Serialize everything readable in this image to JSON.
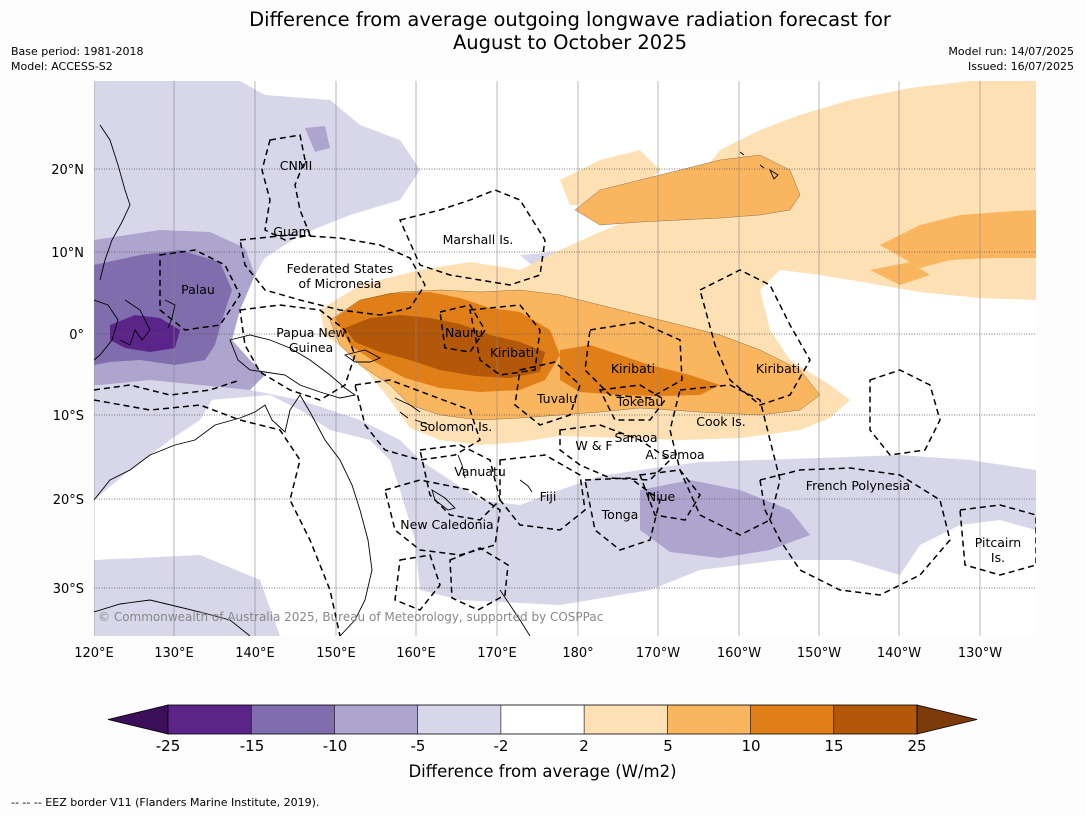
{
  "title_line1": "Difference from average outgoing longwave radiation forecast for",
  "title_line2": "August to October 2025",
  "meta_left": [
    "Base period: 1981-2018",
    "Model: ACCESS-S2"
  ],
  "meta_right": [
    "Model run: 14/07/2025",
    "Issued: 16/07/2025"
  ],
  "lat_labels": [
    "20°N",
    "10°N",
    "0°",
    "10°S",
    "20°S",
    "30°S"
  ],
  "lon_labels": [
    "120°E",
    "130°E",
    "140°E",
    "150°E",
    "160°E",
    "170°E",
    "180°",
    "170°W",
    "160°W",
    "150°W",
    "140°W",
    "130°W"
  ],
  "region_labels": {
    "cnmi": "CNMI",
    "guam": "Guam",
    "palau": "Palau",
    "fsm_line1": "Federated States",
    "fsm_line2": "of Micronesia",
    "marshall": "Marshall Is.",
    "png_line1": "Papua New",
    "png_line2": "Guinea",
    "nauru": "Nauru",
    "kiribati_west": "Kiribati",
    "kiribati_central": "Kiribati",
    "kiribati_east": "Kiribati",
    "tuvalu": "Tuvalu",
    "tokelau": "Tokelau",
    "cook": "Cook Is.",
    "solomon": "Solomon Is.",
    "samoa": "Samoa",
    "wf": "W & F",
    "asamoa": "A. Samoa",
    "vanuatu": "Vanuatu",
    "fiji": "Fiji",
    "niue": "Niue",
    "tonga": "Tonga",
    "newcal": "New Caledonia",
    "frpoly": "French Polynesia",
    "pitcairn_line1": "Pitcairn",
    "pitcairn_line2": "Is."
  },
  "copyright": "© Commonwealth of Australia 2025, Bureau of Meteorology, supported by COSPPac",
  "colorbar": {
    "ticks": [
      "-25",
      "-15",
      "-10",
      "-5",
      "-2",
      "2",
      "5",
      "10",
      "15",
      "25"
    ],
    "colors": [
      "#3b0f5a",
      "#5a2489",
      "#7f6dad",
      "#aea5cf",
      "#d8d6e9",
      "#ffffff",
      "#fde0b4",
      "#fab55f",
      "#e07f17",
      "#b25808",
      "#7d3b0b"
    ],
    "label": "Difference from average (W/m2)"
  },
  "footnote": "-- -- -- EEZ border V11 (Flanders Marine Institute, 2019)."
}
